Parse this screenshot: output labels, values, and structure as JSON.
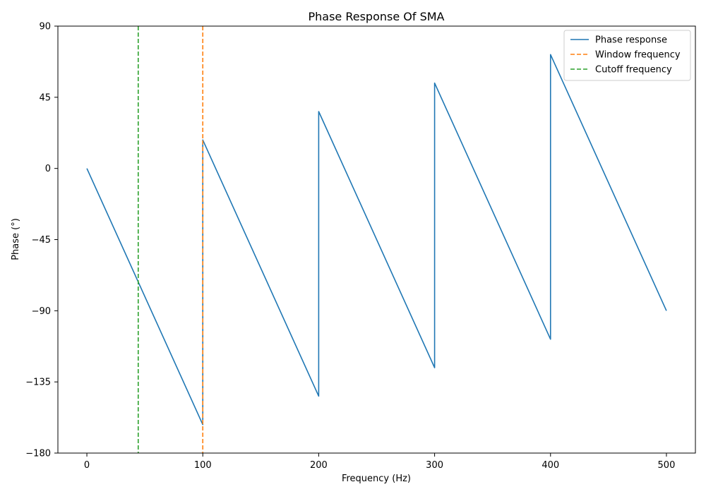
{
  "chart_data": {
    "type": "line",
    "title": "Phase Response Of SMA",
    "xlabel": "Frequency (Hz)",
    "ylabel": "Phase (°)",
    "xlim": [
      -25,
      525
    ],
    "ylim": [
      -180,
      90
    ],
    "x_ticks": [
      0,
      100,
      200,
      300,
      400,
      500
    ],
    "x_tick_labels": [
      "0",
      "100",
      "200",
      "300",
      "400",
      "500"
    ],
    "y_ticks": [
      -180,
      -135,
      -90,
      -45,
      0,
      45,
      90
    ],
    "y_tick_labels": [
      "−180",
      "−135",
      "−90",
      "−45",
      "0",
      "45",
      "90"
    ],
    "grid": false,
    "legend_position": "top-right",
    "series": [
      {
        "name": "Phase response",
        "color": "#1f77b4",
        "style": "solid",
        "x": [
          0,
          100,
          100,
          200,
          200,
          300,
          300,
          400,
          400,
          500
        ],
        "y": [
          0,
          -162,
          18,
          -144,
          36,
          -126,
          54,
          -108,
          72,
          -90
        ]
      },
      {
        "name": "Window frequency",
        "color": "#ff7f0e",
        "style": "dashed",
        "vline": 100
      },
      {
        "name": "Cutoff frequency",
        "color": "#2ca02c",
        "style": "dashed",
        "vline": 44.3
      }
    ]
  }
}
